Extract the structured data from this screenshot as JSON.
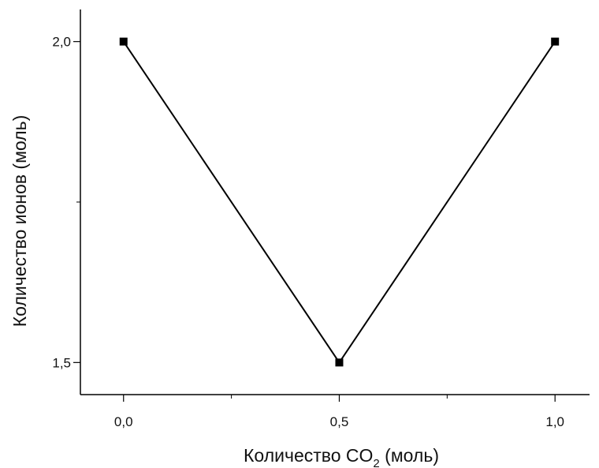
{
  "chart_data": {
    "type": "line",
    "title": "",
    "xlabel_main": "Количество CO",
    "xlabel_subscript": "2",
    "xlabel_suffix": " (моль)",
    "ylabel": "Количество ионов (моль)",
    "xlim": [
      -0.1,
      1.08
    ],
    "ylim": [
      1.45,
      2.05
    ],
    "x_major_ticks": [
      0.0,
      0.5,
      1.0
    ],
    "x_minor_ticks": [
      0.25,
      0.75
    ],
    "x_tick_labels": [
      "0,0",
      "0,5",
      "1,0"
    ],
    "y_major_ticks": [
      1.5,
      2.0
    ],
    "y_minor_ticks": [
      1.75
    ],
    "y_tick_labels": [
      "1,5",
      "2,0"
    ],
    "grid": false,
    "series": [
      {
        "x": [
          0.0,
          0.5,
          1.0
        ],
        "y": [
          2.0,
          1.5,
          2.0
        ],
        "color": "#000000",
        "marker": "square"
      }
    ]
  }
}
